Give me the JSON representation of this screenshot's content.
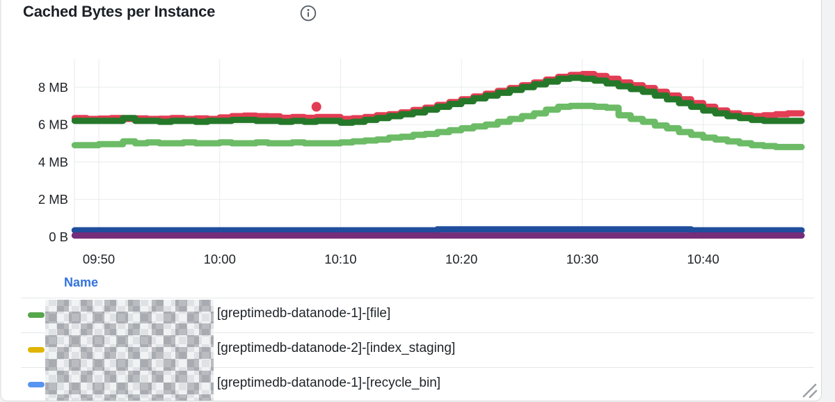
{
  "panel": {
    "title": "Cached Bytes per Instance"
  },
  "legend": {
    "header": "Name",
    "rows": [
      {
        "marker_color": "#56a64b",
        "label": "[greptimedb-datanode-1]-[file]",
        "name_redacted": true
      },
      {
        "marker_color": "#e0b400",
        "label": "[greptimedb-datanode-2]-[index_staging]",
        "name_redacted": true
      },
      {
        "marker_color": "#5794f2",
        "label": "[greptimedb-datanode-1]-[recycle_bin]",
        "name_redacted": true
      }
    ]
  },
  "chart_data": {
    "type": "line",
    "title": "Cached Bytes per Instance",
    "line_style": "stepped-dotted",
    "grid": true,
    "legend_position": "bottom-table",
    "unit": "bytes",
    "ylim_mb": [
      0,
      9.5
    ],
    "x_start": "09:48",
    "x_step_minutes": 1,
    "y_ticks": [
      {
        "label": "8 MB",
        "value": 8
      },
      {
        "label": "6 MB",
        "value": 6
      },
      {
        "label": "4 MB",
        "value": 4
      },
      {
        "label": "2 MB",
        "value": 2
      },
      {
        "label": "0 B",
        "value": 0
      }
    ],
    "x_ticks": [
      {
        "label": "09:50",
        "minute": 2
      },
      {
        "label": "10:00",
        "minute": 12
      },
      {
        "label": "10:10",
        "minute": 22
      },
      {
        "label": "10:20",
        "minute": 32
      },
      {
        "label": "10:30",
        "minute": 42
      },
      {
        "label": "10:40",
        "minute": 52
      }
    ],
    "series": [
      {
        "name": "series-red",
        "color": "#e23d54",
        "values_mb": [
          6.35,
          6.3,
          6.32,
          6.35,
          6.3,
          6.33,
          6.3,
          6.31,
          6.35,
          6.3,
          6.33,
          6.3,
          6.38,
          6.45,
          6.48,
          6.45,
          6.44,
          6.36,
          6.4,
          6.36,
          6.4,
          6.4,
          6.3,
          6.34,
          6.4,
          6.5,
          6.55,
          6.65,
          6.78,
          6.9,
          7.05,
          7.2,
          7.35,
          7.5,
          7.65,
          7.8,
          7.95,
          8.1,
          8.25,
          8.4,
          8.55,
          8.65,
          8.7,
          8.6,
          8.45,
          8.25,
          8.1,
          7.95,
          7.75,
          7.55,
          7.35,
          7.15,
          6.95,
          6.75,
          6.6,
          6.5,
          6.45,
          6.5,
          6.55,
          6.6
        ]
      },
      {
        "name": "series-dark-green",
        "color": "#25782a",
        "values_mb": [
          6.2,
          6.2,
          6.2,
          6.2,
          6.35,
          6.2,
          6.2,
          6.15,
          6.2,
          6.2,
          6.15,
          6.2,
          6.2,
          6.25,
          6.25,
          6.2,
          6.2,
          6.15,
          6.2,
          6.15,
          6.2,
          6.2,
          6.1,
          6.15,
          6.25,
          6.35,
          6.45,
          6.55,
          6.65,
          6.8,
          6.95,
          7.1,
          7.25,
          7.4,
          7.55,
          7.7,
          7.85,
          8.0,
          8.15,
          8.3,
          8.45,
          8.5,
          8.45,
          8.35,
          8.2,
          8.05,
          7.9,
          7.75,
          7.55,
          7.35,
          7.15,
          6.95,
          6.75,
          6.6,
          6.45,
          6.35,
          6.25,
          6.2,
          6.2,
          6.2
        ]
      },
      {
        "name": "series-light-green",
        "color": "#6cbb66",
        "values_mb": [
          4.9,
          4.9,
          4.95,
          4.95,
          5.1,
          5.0,
          5.05,
          5.0,
          5.0,
          5.05,
          5.0,
          5.0,
          5.05,
          5.0,
          5.0,
          5.05,
          5.0,
          5.0,
          5.05,
          5.0,
          5.0,
          5.0,
          5.05,
          5.1,
          5.15,
          5.2,
          5.3,
          5.35,
          5.45,
          5.5,
          5.6,
          5.7,
          5.8,
          5.9,
          6.0,
          6.15,
          6.3,
          6.45,
          6.6,
          6.8,
          6.95,
          7.0,
          7.0,
          6.95,
          6.9,
          6.5,
          6.3,
          6.15,
          5.95,
          5.8,
          5.6,
          5.45,
          5.3,
          5.2,
          5.1,
          5.0,
          4.9,
          4.85,
          4.8,
          4.8
        ]
      },
      {
        "name": "series-navy",
        "color": "#1f4e9c",
        "values_mb": [
          0.35,
          0.35,
          0.35,
          0.35,
          0.35,
          0.35,
          0.35,
          0.35,
          0.35,
          0.35,
          0.35,
          0.35,
          0.35,
          0.35,
          0.35,
          0.35,
          0.35,
          0.35,
          0.35,
          0.35,
          0.35,
          0.35,
          0.35,
          0.35,
          0.35,
          0.35,
          0.35,
          0.35,
          0.35,
          0.35,
          0.4,
          0.4,
          0.4,
          0.4,
          0.4,
          0.4,
          0.4,
          0.4,
          0.4,
          0.4,
          0.4,
          0.4,
          0.4,
          0.4,
          0.4,
          0.4,
          0.4,
          0.4,
          0.4,
          0.4,
          0.4,
          0.35,
          0.35,
          0.35,
          0.35,
          0.35,
          0.35,
          0.35,
          0.35,
          0.35
        ]
      },
      {
        "name": "series-purple",
        "color": "#762d7a",
        "values_mb": [
          0.07,
          0.07,
          0.07,
          0.07,
          0.07,
          0.07,
          0.07,
          0.07,
          0.07,
          0.07,
          0.07,
          0.07,
          0.07,
          0.07,
          0.07,
          0.07,
          0.07,
          0.07,
          0.07,
          0.07,
          0.07,
          0.07,
          0.07,
          0.07,
          0.07,
          0.07,
          0.07,
          0.07,
          0.07,
          0.07,
          0.07,
          0.07,
          0.07,
          0.07,
          0.07,
          0.07,
          0.07,
          0.07,
          0.07,
          0.07,
          0.07,
          0.07,
          0.07,
          0.07,
          0.07,
          0.07,
          0.07,
          0.07,
          0.07,
          0.07,
          0.07,
          0.07,
          0.07,
          0.07,
          0.07,
          0.07,
          0.07,
          0.07,
          0.07,
          0.07
        ]
      }
    ],
    "outliers": [
      {
        "series": "series-red",
        "minute": 20,
        "value_mb": 6.95
      }
    ]
  },
  "colors": {
    "link_blue": "#3273dc",
    "text": "#1e2328",
    "grid": "#e9eaeb",
    "panel_bg": "#ffffff",
    "page_bg": "#f2f3f4"
  }
}
